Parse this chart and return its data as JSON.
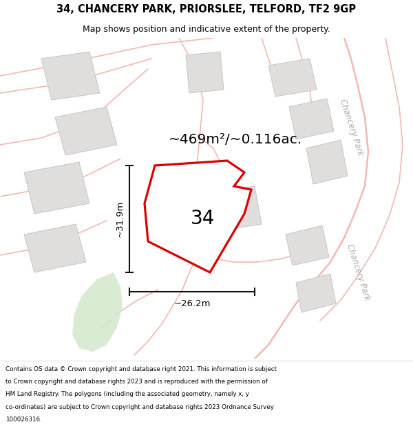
{
  "title": "34, CHANCERY PARK, PRIORSLEE, TELFORD, TF2 9GP",
  "subtitle": "Map shows position and indicative extent of the property.",
  "area_label": "~469m²/~0.116ac.",
  "property_number": "34",
  "dim_horizontal": "~26.2m",
  "dim_vertical": "~31.9m",
  "footer_lines": [
    "Contains OS data © Crown copyright and database right 2021. This information is subject",
    "to Crown copyright and database rights 2023 and is reproduced with the permission of",
    "HM Land Registry. The polygons (including the associated geometry, namely x, y",
    "co-ordinates) are subject to Crown copyright and database rights 2023 Ordnance Survey",
    "100026316."
  ],
  "map_bg": "#f7f6f2",
  "red_outline": "#dd0000",
  "road_color": "#f2b8b0",
  "road_lw": 1.2,
  "building_fill": "#e0dedd",
  "building_edge": "#c8c5c2",
  "building_lw": 0.7,
  "green_fill": "#d4e8cc",
  "green_alpha": 0.85,
  "dim_line_color": "#111111",
  "road_label_color": "#aaaaaa",
  "title_fontsize": 10.5,
  "subtitle_fontsize": 9.0,
  "area_fontsize": 14.5,
  "number_fontsize": 20,
  "dim_fontsize": 9.5,
  "footer_fontsize": 6.3,
  "road_label_fontsize": 8.5
}
